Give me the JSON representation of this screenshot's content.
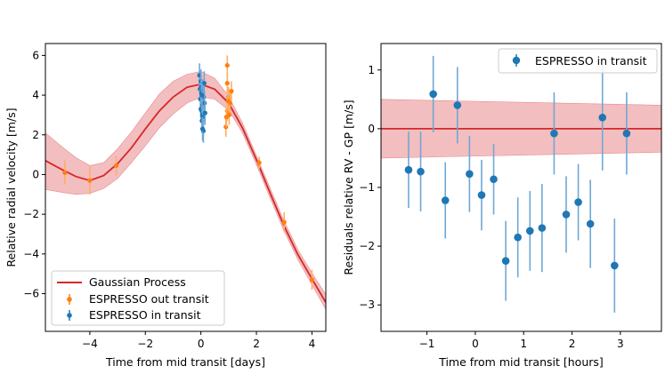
{
  "chart_data": [
    {
      "type": "line",
      "xlabel": "Time from mid transit [days]",
      "ylabel": "Relative radial velocity [m/s]",
      "xlim": [
        -5.6,
        4.5
      ],
      "ylim": [
        -7.9,
        6.6
      ],
      "xticks": [
        -4,
        -2,
        0,
        2,
        4
      ],
      "xtick_labels": [
        "−4",
        "−2",
        "0",
        "2",
        "4"
      ],
      "yticks": [
        -6,
        -4,
        -2,
        0,
        2,
        4,
        6
      ],
      "ytick_labels": [
        "−6",
        "−4",
        "−2",
        "0",
        "2",
        "4",
        "6"
      ],
      "legend": {
        "position": "lower-left",
        "entries": [
          "Gaussian Process",
          "ESPRESSO out transit",
          "ESPRESSO in transit"
        ]
      },
      "colors": {
        "gp": "#d62728",
        "gp_band": "#f2b7b8",
        "out_transit": "#ff7f0e",
        "in_transit": "#1f77b4"
      },
      "gp_model": {
        "name": "Gaussian Process",
        "x": [
          -5.6,
          -5.0,
          -4.5,
          -4.0,
          -3.5,
          -3.0,
          -2.5,
          -2.0,
          -1.5,
          -1.0,
          -0.5,
          0.0,
          0.5,
          1.0,
          1.5,
          2.0,
          2.5,
          3.0,
          3.5,
          4.0,
          4.5
        ],
        "y": [
          0.7,
          0.25,
          -0.1,
          -0.3,
          -0.05,
          0.55,
          1.35,
          2.3,
          3.2,
          3.9,
          4.4,
          4.55,
          4.3,
          3.6,
          2.35,
          0.75,
          -0.95,
          -2.6,
          -4.05,
          -5.25,
          -6.45
        ],
        "lower": [
          -0.75,
          -0.9,
          -1.0,
          -0.95,
          -0.7,
          -0.2,
          0.6,
          1.45,
          2.35,
          3.05,
          3.6,
          3.9,
          3.8,
          3.25,
          2.1,
          0.5,
          -1.2,
          -2.85,
          -4.3,
          -5.55,
          -6.8
        ],
        "upper": [
          2.1,
          1.4,
          0.85,
          0.45,
          0.6,
          1.3,
          2.15,
          3.1,
          4.05,
          4.7,
          5.05,
          5.2,
          4.85,
          3.95,
          2.6,
          0.95,
          -0.7,
          -2.35,
          -3.8,
          -4.95,
          -6.05
        ]
      },
      "series": [
        {
          "name": "ESPRESSO out transit",
          "x": [
            -4.9,
            -4.0,
            -3.05,
            0.95,
            0.95,
            1.0,
            1.0,
            0.9,
            1.05,
            0.95,
            1.1,
            0.98,
            0.92,
            1.02,
            2.1,
            3.0,
            4.0
          ],
          "y": [
            0.1,
            -0.3,
            0.45,
            5.5,
            4.6,
            3.9,
            3.3,
            2.4,
            3.6,
            3.2,
            4.2,
            3.7,
            2.9,
            3.0,
            0.6,
            -2.4,
            -5.3
          ],
          "err": [
            0.6,
            0.7,
            0.5,
            0.5,
            0.5,
            0.5,
            0.5,
            0.5,
            0.5,
            0.5,
            0.5,
            0.5,
            0.5,
            0.5,
            0.3,
            0.5,
            0.5
          ]
        },
        {
          "name": "ESPRESSO in transit",
          "x": [
            -0.05,
            -0.03,
            -0.02,
            0.0,
            0.0,
            0.01,
            0.02,
            0.03,
            0.04,
            0.05,
            0.06,
            0.07,
            0.08,
            0.09,
            0.1,
            0.12,
            0.13,
            0.15,
            0.06,
            0.04
          ],
          "y": [
            5.0,
            4.3,
            3.8,
            4.7,
            3.3,
            4.4,
            4.1,
            3.2,
            2.7,
            3.0,
            4.2,
            3.5,
            2.9,
            2.2,
            3.9,
            4.6,
            3.6,
            3.1,
            2.3,
            4.0
          ],
          "err": [
            0.6,
            0.6,
            0.6,
            0.6,
            0.6,
            0.6,
            0.6,
            0.6,
            0.6,
            0.6,
            0.6,
            0.6,
            0.6,
            0.6,
            0.6,
            0.6,
            0.6,
            0.6,
            0.6,
            0.6
          ]
        }
      ]
    },
    {
      "type": "scatter",
      "xlabel": "Time from mid transit [hours]",
      "ylabel": "Residuals relative RV - GP [m/s]",
      "xlim": [
        -1.95,
        3.85
      ],
      "ylim": [
        -3.45,
        1.45
      ],
      "xticks": [
        -1,
        0,
        1,
        2,
        3
      ],
      "xtick_labels": [
        "−1",
        "0",
        "1",
        "2",
        "3"
      ],
      "yticks": [
        -3,
        -2,
        -1,
        0,
        1
      ],
      "ytick_labels": [
        "−3",
        "−2",
        "−1",
        "0",
        "1"
      ],
      "legend": {
        "position": "top-right",
        "entries": [
          "ESPRESSO in transit"
        ]
      },
      "colors": {
        "band": "#f2b7b8",
        "line": "#d62728",
        "points": "#1f77b4"
      },
      "zero_band": {
        "x": [
          -1.95,
          3.85
        ],
        "center": [
          0.0,
          0.0
        ],
        "lower": [
          -0.5,
          -0.4
        ],
        "upper": [
          0.5,
          0.4
        ]
      },
      "series": [
        {
          "name": "ESPRESSO in transit",
          "x": [
            -1.38,
            -1.13,
            -0.87,
            -0.62,
            -0.37,
            -0.12,
            0.13,
            0.38,
            0.63,
            0.88,
            1.13,
            1.38,
            1.63,
            1.88,
            2.13,
            2.38,
            2.63,
            2.88,
            3.13
          ],
          "y": [
            -0.7,
            -0.73,
            0.59,
            -1.22,
            0.4,
            -0.77,
            -1.13,
            -0.86,
            -2.25,
            -1.85,
            -1.74,
            -1.69,
            -0.08,
            -1.46,
            -1.25,
            -1.62,
            0.19,
            -2.33,
            -0.08
          ],
          "err": [
            0.65,
            0.68,
            0.65,
            0.65,
            0.65,
            0.65,
            0.6,
            0.6,
            0.68,
            0.68,
            0.68,
            0.75,
            0.7,
            0.65,
            0.65,
            0.75,
            0.9,
            0.8,
            0.7
          ]
        }
      ]
    }
  ]
}
